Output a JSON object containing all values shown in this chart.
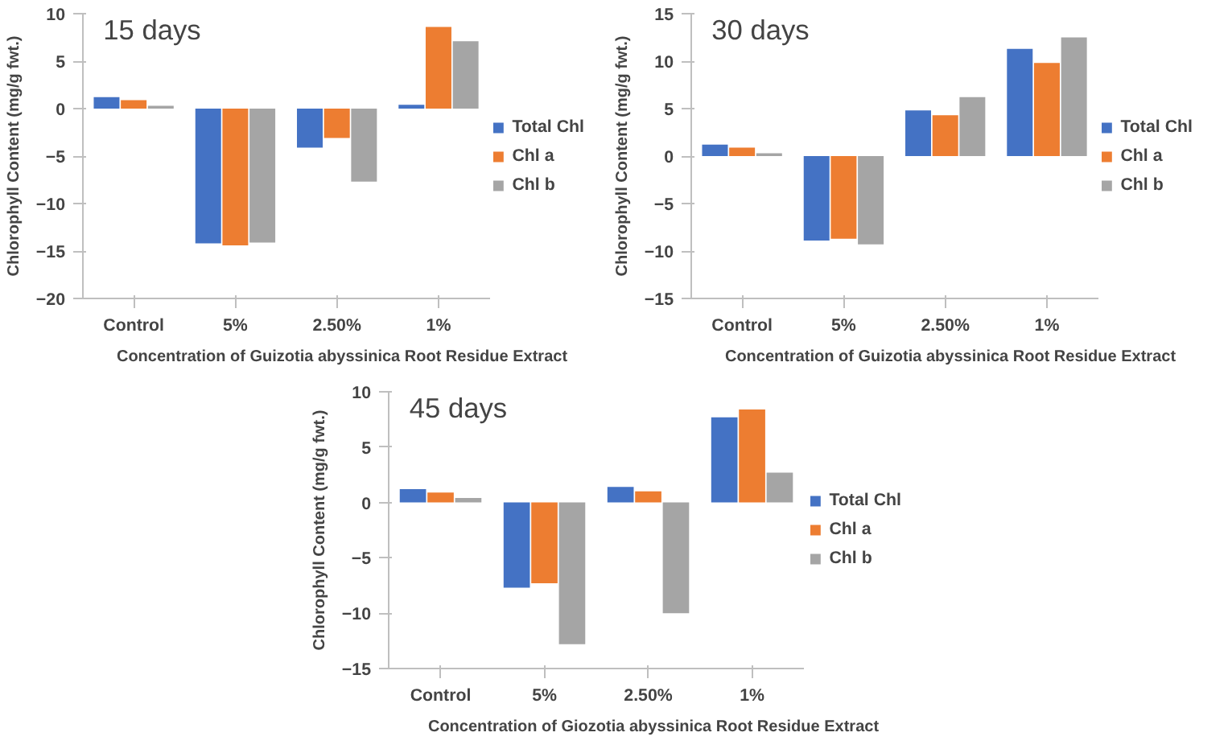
{
  "chart_data": [
    {
      "type": "bar",
      "title": "15 days",
      "xlabel": "Concentration of Guizotia abyssinica Root Residue Extract",
      "ylabel": "Chlorophyll Content (mg/g fwt.)",
      "categories": [
        "Control",
        "5%",
        "2.50%",
        "1%"
      ],
      "ylim": [
        -20,
        10
      ],
      "yticks": [
        -20,
        -15,
        -10,
        -5,
        0,
        5,
        10
      ],
      "grid": false,
      "legend": "right",
      "series": [
        {
          "name": "Total Chl",
          "color": "#4472c4",
          "values": [
            1.2,
            -14.2,
            -4.1,
            0.4
          ]
        },
        {
          "name": "Chl a",
          "color": "#ed7d31",
          "values": [
            0.9,
            -14.4,
            -3.1,
            8.6
          ]
        },
        {
          "name": "Chl b",
          "color": "#a5a5a5",
          "values": [
            0.3,
            -14.1,
            -7.7,
            7.1
          ]
        }
      ]
    },
    {
      "type": "bar",
      "title": "30 days",
      "xlabel": "Concentration of Guizotia abyssinica Root Residue Extract",
      "ylabel": "Chlorophyll Content (mg/g fwt.)",
      "categories": [
        "Control",
        "5%",
        "2.50%",
        "1%"
      ],
      "ylim": [
        -15,
        15
      ],
      "yticks": [
        -15,
        -10,
        -5,
        0,
        5,
        10,
        15
      ],
      "grid": false,
      "legend": "right",
      "series": [
        {
          "name": "Total Chl",
          "color": "#4472c4",
          "values": [
            1.2,
            -8.9,
            4.8,
            11.3
          ]
        },
        {
          "name": "Chl a",
          "color": "#ed7d31",
          "values": [
            0.9,
            -8.7,
            4.3,
            9.8
          ]
        },
        {
          "name": "Chl b",
          "color": "#a5a5a5",
          "values": [
            0.3,
            -9.3,
            6.2,
            12.5
          ]
        }
      ]
    },
    {
      "type": "bar",
      "title": "45 days",
      "xlabel": "Concentration of Giozotia abyssinica Root Residue Extract",
      "ylabel": "Chlorophyll Content (mg/g fwt.)",
      "categories": [
        "Control",
        "5%",
        "2.50%",
        "1%"
      ],
      "ylim": [
        -15,
        10
      ],
      "yticks": [
        -15,
        -10,
        -5,
        0,
        5,
        10
      ],
      "grid": false,
      "legend": "right",
      "series": [
        {
          "name": "Total Chl",
          "color": "#4472c4",
          "values": [
            1.2,
            -7.7,
            1.4,
            7.7
          ]
        },
        {
          "name": "Chl a",
          "color": "#ed7d31",
          "values": [
            0.9,
            -7.3,
            1.0,
            8.4
          ]
        },
        {
          "name": "Chl b",
          "color": "#a5a5a5",
          "values": [
            0.4,
            -12.8,
            -10.0,
            2.7
          ]
        }
      ]
    }
  ]
}
